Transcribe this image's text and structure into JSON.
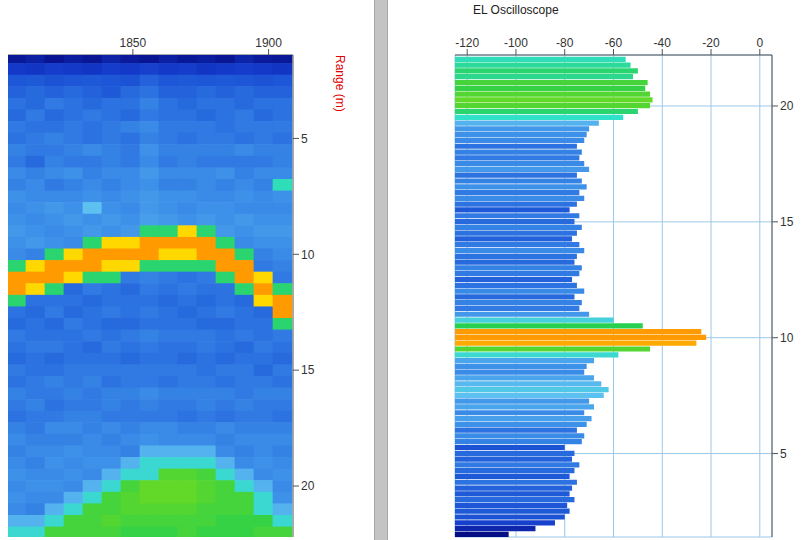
{
  "chart_data": [
    {
      "type": "heatmap",
      "y_label": "Range (m)",
      "x": [
        1807,
        1814,
        1821,
        1828,
        1835,
        1842,
        1849,
        1856,
        1863,
        1870,
        1877,
        1884,
        1891,
        1898,
        1905
      ],
      "y": [
        1.5,
        2,
        2.5,
        3,
        3.5,
        4,
        4.5,
        5,
        5.5,
        6,
        6.5,
        7,
        7.5,
        8,
        8.5,
        9,
        9.5,
        10,
        10.5,
        11,
        11.5,
        12,
        12.5,
        13,
        13.5,
        14,
        14.5,
        15,
        15.5,
        16,
        16.5,
        17,
        17.5,
        18,
        18.5,
        19,
        19.5,
        20,
        20.5,
        21,
        21.5,
        22
      ],
      "cells": [
        [
          -97,
          -86,
          -79,
          -77,
          -75,
          -76,
          -74,
          -75,
          -73,
          -74,
          -72,
          -73,
          -71,
          -72,
          -71,
          -70,
          -71,
          -72,
          -50,
          -24,
          -24,
          -50,
          -75,
          -76,
          -74,
          -75,
          -76,
          -74,
          -75,
          -73,
          -74,
          -75,
          -73,
          -72,
          -73,
          -72,
          -71,
          -72,
          -71,
          -72,
          -66,
          -58
        ],
        [
          -94,
          -87,
          -78,
          -76,
          -76,
          -74,
          -75,
          -74,
          -74,
          -76,
          -73,
          -72,
          -72,
          -71,
          -72,
          -71,
          -70,
          -73,
          -32,
          -24,
          -32,
          -75,
          -76,
          -75,
          -75,
          -74,
          -75,
          -75,
          -74,
          -74,
          -73,
          -74,
          -74,
          -73,
          -72,
          -73,
          -72,
          -71,
          -72,
          -73,
          -66,
          -58
        ],
        [
          -99,
          -85,
          -80,
          -77,
          -74,
          -76,
          -75,
          -73,
          -74,
          -73,
          -72,
          -74,
          -72,
          -70,
          -71,
          -72,
          -71,
          -50,
          -24,
          -24,
          -50,
          -75,
          -74,
          -76,
          -75,
          -74,
          -76,
          -75,
          -73,
          -74,
          -75,
          -74,
          -72,
          -73,
          -72,
          -71,
          -72,
          -71,
          -72,
          -66,
          -58,
          -46
        ],
        [
          -95,
          -86,
          -79,
          -76,
          -75,
          -75,
          -74,
          -74,
          -73,
          -74,
          -71,
          -73,
          -72,
          -71,
          -70,
          -71,
          -72,
          -32,
          -24,
          -32,
          -76,
          -75,
          -76,
          -74,
          -75,
          -75,
          -75,
          -74,
          -74,
          -73,
          -74,
          -73,
          -72,
          -73,
          -71,
          -72,
          -71,
          -72,
          -66,
          -58,
          -46,
          -46
        ],
        [
          -98,
          -87,
          -78,
          -77,
          -76,
          -74,
          -75,
          -75,
          -72,
          -74,
          -73,
          -72,
          -71,
          -64,
          -71,
          -70,
          -50,
          -24,
          -24,
          -50,
          -74,
          -76,
          -75,
          -75,
          -74,
          -76,
          -75,
          -74,
          -73,
          -74,
          -74,
          -73,
          -73,
          -72,
          -72,
          -71,
          -72,
          -66,
          -58,
          -46,
          -46,
          -46
        ],
        [
          -93,
          -85,
          -79,
          -78,
          -75,
          -75,
          -74,
          -74,
          -73,
          -73,
          -72,
          -73,
          -72,
          -71,
          -70,
          -71,
          -32,
          -24,
          -32,
          -50,
          -75,
          -75,
          -74,
          -76,
          -75,
          -74,
          -75,
          -74,
          -75,
          -73,
          -73,
          -74,
          -72,
          -73,
          -72,
          -71,
          -66,
          -58,
          -46,
          -46,
          -45,
          -46
        ],
        [
          -96,
          -86,
          -80,
          -76,
          -75,
          -76,
          -73,
          -75,
          -74,
          -74,
          -72,
          -72,
          -71,
          -72,
          -71,
          -70,
          -32,
          -24,
          -32,
          -74,
          -76,
          -75,
          -75,
          -76,
          -74,
          -75,
          -76,
          -74,
          -74,
          -73,
          -74,
          -74,
          -73,
          -72,
          -73,
          -66,
          -58,
          -46,
          -45,
          -45,
          -46,
          -47
        ],
        [
          -99,
          -84,
          -77,
          -75,
          -73,
          -74,
          -72,
          -73,
          -71,
          -72,
          -70,
          -71,
          -70,
          -70,
          -69,
          -50,
          -24,
          -24,
          -50,
          -73,
          -74,
          -75,
          -74,
          -75,
          -73,
          -74,
          -75,
          -74,
          -74,
          -72,
          -73,
          -74,
          -72,
          -71,
          -66,
          -58,
          -58,
          -44,
          -44,
          -45,
          -46,
          -47
        ],
        [
          -94,
          -86,
          -79,
          -77,
          -75,
          -75,
          -74,
          -74,
          -73,
          -74,
          -72,
          -73,
          -71,
          -71,
          -70,
          -50,
          -24,
          -32,
          -50,
          -74,
          -75,
          -76,
          -75,
          -75,
          -74,
          -75,
          -75,
          -74,
          -75,
          -73,
          -74,
          -74,
          -72,
          -72,
          -66,
          -58,
          -45,
          -44,
          -44,
          -45,
          -46,
          -47
        ],
        [
          -97,
          -85,
          -78,
          -77,
          -76,
          -75,
          -74,
          -75,
          -73,
          -73,
          -72,
          -73,
          -71,
          -72,
          -71,
          -32,
          -24,
          -32,
          -50,
          -75,
          -74,
          -75,
          -76,
          -75,
          -74,
          -75,
          -76,
          -74,
          -74,
          -73,
          -74,
          -75,
          -73,
          -72,
          -66,
          -58,
          -45,
          -44,
          -44,
          -45,
          -46,
          -46
        ],
        [
          -95,
          -87,
          -79,
          -76,
          -75,
          -76,
          -74,
          -74,
          -73,
          -74,
          -72,
          -72,
          -72,
          -71,
          -70,
          -50,
          -24,
          -24,
          -50,
          -74,
          -75,
          -76,
          -75,
          -76,
          -74,
          -74,
          -75,
          -75,
          -74,
          -73,
          -73,
          -74,
          -73,
          -72,
          -66,
          -58,
          -46,
          -45,
          -45,
          -46,
          -46,
          -47
        ],
        [
          -98,
          -86,
          -78,
          -77,
          -75,
          -75,
          -75,
          -74,
          -73,
          -74,
          -71,
          -73,
          -72,
          -71,
          -71,
          -70,
          -50,
          -24,
          -24,
          -50,
          -75,
          -75,
          -74,
          -76,
          -75,
          -75,
          -76,
          -74,
          -75,
          -73,
          -74,
          -75,
          -72,
          -73,
          -72,
          -66,
          -58,
          -46,
          -46,
          -46,
          -47,
          -47
        ],
        [
          -93,
          -85,
          -79,
          -76,
          -76,
          -74,
          -74,
          -75,
          -72,
          -74,
          -73,
          -72,
          -71,
          -72,
          -70,
          -71,
          -72,
          -50,
          -24,
          -24,
          -50,
          -76,
          -75,
          -75,
          -74,
          -76,
          -75,
          -74,
          -74,
          -74,
          -73,
          -74,
          -73,
          -72,
          -73,
          -72,
          -66,
          -58,
          -46,
          -46,
          -47,
          -47
        ],
        [
          -96,
          -86,
          -80,
          -77,
          -75,
          -76,
          -74,
          -74,
          -73,
          -74,
          -72,
          -73,
          -72,
          -72,
          -71,
          -70,
          -71,
          -73,
          -74,
          -32,
          -24,
          -32,
          -76,
          -75,
          -75,
          -74,
          -75,
          -76,
          -74,
          -73,
          -74,
          -74,
          -73,
          -72,
          -72,
          -71,
          -72,
          -66,
          -58,
          -58,
          -47,
          -46
        ],
        [
          -97,
          -87,
          -79,
          -77,
          -75,
          -75,
          -74,
          -75,
          -73,
          -73,
          -72,
          -55,
          -71,
          -72,
          -71,
          -70,
          -71,
          -72,
          -73,
          -74,
          -50,
          -24,
          -24,
          -50,
          -74,
          -75,
          -76,
          -74,
          -75,
          -73,
          -74,
          -75,
          -73,
          -72,
          -73,
          -72,
          -71,
          -72,
          -71,
          -66,
          -58,
          -46
        ]
      ],
      "xlim": [
        1804,
        1909
      ],
      "xticks": [
        1850,
        1900
      ],
      "ylim": [
        1.4,
        22.2
      ],
      "yticks": [
        5,
        10,
        15,
        20
      ]
    },
    {
      "type": "bar",
      "title": "EL Oscilloscope",
      "orientation": "horizontal",
      "y": [
        1.5,
        1.75,
        2,
        2.25,
        2.5,
        2.75,
        3,
        3.25,
        3.5,
        3.75,
        4,
        4.25,
        4.5,
        4.75,
        5,
        5.25,
        5.5,
        5.75,
        6,
        6.25,
        6.5,
        6.75,
        7,
        7.25,
        7.5,
        7.75,
        8,
        8.25,
        8.5,
        8.75,
        9,
        9.25,
        9.5,
        9.75,
        10,
        10.25,
        10.5,
        10.75,
        11,
        11.25,
        11.5,
        11.75,
        12,
        12.25,
        12.5,
        12.75,
        13,
        13.25,
        13.5,
        13.75,
        14,
        14.25,
        14.5,
        14.75,
        15,
        15.25,
        15.5,
        15.75,
        16,
        16.25,
        16.5,
        16.75,
        17,
        17.25,
        17.5,
        17.75,
        18,
        18.25,
        18.5,
        18.75,
        19,
        19.25,
        19.5,
        19.75,
        20,
        20.25,
        20.5,
        20.75,
        21,
        21.25,
        21.5,
        21.75,
        22
      ],
      "values": [
        -103,
        -92,
        -84,
        -80,
        -78,
        -79,
        -76,
        -78,
        -77,
        -75,
        -78,
        -76,
        -74,
        -77,
        -76,
        -80,
        -73,
        -72,
        -75,
        -71,
        -69,
        -72,
        -68,
        -70,
        -64,
        -62,
        -65,
        -68,
        -72,
        -71,
        -68,
        -58,
        -45,
        -26,
        -22,
        -24,
        -48,
        -60,
        -70,
        -74,
        -73,
        -76,
        -72,
        -75,
        -77,
        -74,
        -73,
        -76,
        -75,
        -72,
        -74,
        -77,
        -75,
        -73,
        -76,
        -74,
        -78,
        -75,
        -72,
        -74,
        -71,
        -73,
        -75,
        -70,
        -72,
        -74,
        -73,
        -75,
        -72,
        -71,
        -70,
        -66,
        -56,
        -50,
        -45,
        -44,
        -45,
        -47,
        -46,
        -52,
        -50,
        -53,
        -55
      ],
      "xlim": [
        -125,
        5
      ],
      "xticks": [
        -120,
        -100,
        -80,
        -60,
        -40,
        -20,
        0
      ],
      "ylim": [
        1.4,
        22.2
      ],
      "yticks": [
        5,
        10,
        15,
        20
      ],
      "grid": true
    }
  ]
}
